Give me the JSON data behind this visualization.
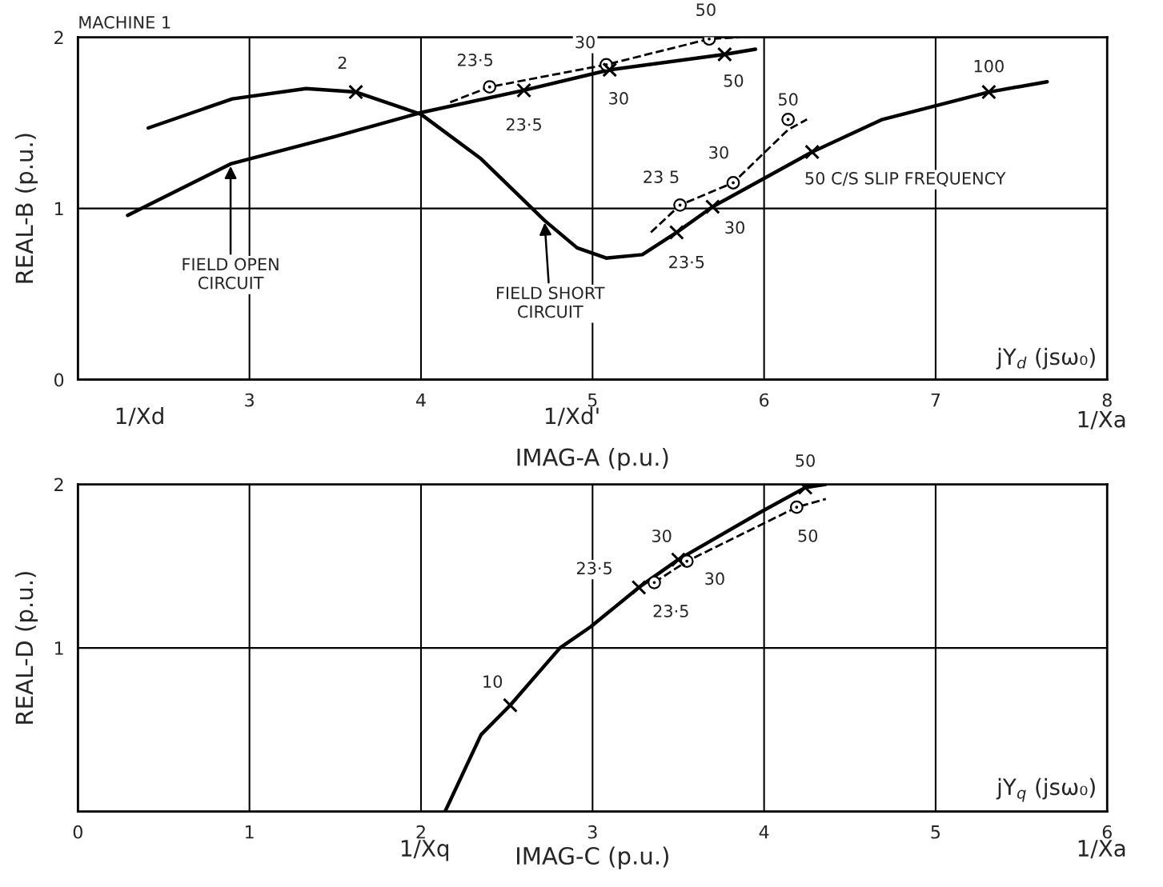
{
  "chart_data": [
    {
      "type": "line",
      "title": "MACHINE 1",
      "xlabel": "IMAG-A (p.u.)",
      "ylabel": "REAL-B (p.u.)",
      "xlim": [
        2,
        8
      ],
      "ylim": [
        0,
        2
      ],
      "xticks": [
        {
          "value": 2,
          "label": null
        },
        3,
        4,
        5,
        6,
        7,
        8
      ],
      "yticks": [
        0,
        1,
        2
      ],
      "grid": true,
      "series": [
        {
          "type": "line",
          "color": "#000000",
          "line_style": "solid",
          "marker": "none",
          "x": [
            2.29,
            2.89,
            3.5,
            4.0,
            4.6,
            5.1,
            5.77,
            5.95
          ],
          "values": [
            0.96,
            1.26,
            1.42,
            1.56,
            1.69,
            1.81,
            1.9,
            1.93
          ]
        },
        {
          "type": "scatter",
          "color": "#000000",
          "marker": "cross",
          "x": [
            4.6,
            5.1,
            5.77
          ],
          "values": [
            1.69,
            1.81,
            1.9
          ]
        },
        {
          "type": "line",
          "color": "#000000",
          "line_style": "dashed",
          "marker": "none",
          "x": [
            4.17,
            4.4,
            5.08,
            5.68,
            5.86
          ],
          "values": [
            1.62,
            1.71,
            1.84,
            1.99,
            2.0
          ]
        },
        {
          "type": "scatter",
          "color": "#000000",
          "marker": "circle",
          "x": [
            4.4,
            5.08,
            5.68
          ],
          "values": [
            1.71,
            1.84,
            1.99
          ]
        },
        {
          "type": "line",
          "color": "#000000",
          "line_style": "solid",
          "marker": "none",
          "x": [
            2.41,
            2.9,
            3.33,
            3.62,
            4.0,
            4.35,
            4.72,
            4.91,
            5.08,
            5.29,
            5.49,
            5.7,
            5.99,
            6.28,
            6.69,
            7.31,
            7.65
          ],
          "values": [
            1.47,
            1.64,
            1.7,
            1.68,
            1.55,
            1.29,
            0.93,
            0.77,
            0.71,
            0.73,
            0.86,
            1.01,
            1.17,
            1.33,
            1.52,
            1.68,
            1.74
          ]
        },
        {
          "type": "scatter",
          "color": "#000000",
          "marker": "cross",
          "x": [
            3.62,
            5.49,
            5.7,
            6.28,
            7.31
          ],
          "values": [
            1.68,
            0.86,
            1.01,
            1.33,
            1.68
          ]
        },
        {
          "type": "line",
          "color": "#000000",
          "line_style": "dashed",
          "marker": "none",
          "x": [
            5.34,
            5.51,
            5.82,
            6.14,
            6.25
          ],
          "values": [
            0.86,
            1.02,
            1.15,
            1.46,
            1.52
          ]
        },
        {
          "type": "scatter",
          "color": "#000000",
          "marker": "circle",
          "x": [
            5.51,
            5.82,
            6.14
          ],
          "values": [
            1.02,
            1.15,
            1.52
          ]
        }
      ],
      "annotations": [
        {
          "text": "FIELD OPEN\nCIRCUIT",
          "x": 2.89,
          "y": 1.26
        },
        {
          "text": "FIELD SHORT\nCIRCUIT",
          "x": 4.72,
          "y": 0.93
        },
        {
          "text": "50 C/S SLIP FREQUENCY",
          "x": 6.28,
          "y": 1.33
        },
        {
          "text": "2",
          "x": 3.62,
          "y": 1.68
        },
        {
          "text": "23·5",
          "x": 4.6,
          "y": 1.69
        },
        {
          "text": "30",
          "x": 5.1,
          "y": 1.81
        },
        {
          "text": "50",
          "x": 5.77,
          "y": 1.9
        },
        {
          "text": "23·5",
          "x": 4.4,
          "y": 1.71
        },
        {
          "text": "30",
          "x": 5.08,
          "y": 1.84
        },
        {
          "text": "50",
          "x": 5.68,
          "y": 1.99
        },
        {
          "text": "23·5",
          "x": 5.49,
          "y": 0.86
        },
        {
          "text": "30",
          "x": 5.7,
          "y": 1.01
        },
        {
          "text": "100",
          "x": 7.31,
          "y": 1.68
        },
        {
          "text": "23 5",
          "x": 5.51,
          "y": 1.02
        },
        {
          "text": "30",
          "x": 5.82,
          "y": 1.15
        },
        {
          "text": "50",
          "x": 6.14,
          "y": 1.46
        },
        "1/Xd",
        "1/Xd'",
        "jY$_{d}$ (jsω₀)",
        "1/Xa"
      ]
    },
    {
      "type": "line",
      "xlabel": "IMAG-C (p.u.)",
      "ylabel": "REAL-D (p.u.)",
      "xlim": [
        0,
        6
      ],
      "ylim": [
        0,
        2
      ],
      "xticks": [
        0,
        1,
        2,
        3,
        4,
        5,
        6
      ],
      "yticks": [
        {
          "value": 0,
          "label": null
        },
        1,
        2
      ],
      "grid": true,
      "series": [
        {
          "type": "line",
          "color": "#000000",
          "line_style": "solid",
          "marker": "none",
          "x": [
            2.14,
            2.35,
            2.52,
            2.81,
            2.99,
            3.27,
            3.5,
            3.98,
            4.24,
            4.36
          ],
          "values": [
            0.0,
            0.47,
            0.65,
            1.0,
            1.13,
            1.37,
            1.54,
            1.83,
            1.98,
            2.0
          ]
        },
        {
          "type": "scatter",
          "color": "#000000",
          "marker": "cross",
          "x": [
            2.52,
            3.27,
            3.5,
            4.24
          ],
          "values": [
            0.65,
            1.37,
            1.54,
            1.98
          ]
        },
        {
          "type": "line",
          "color": "#000000",
          "line_style": "dashed",
          "marker": "none",
          "x": [
            3.36,
            3.55,
            4.19,
            4.36
          ],
          "values": [
            1.4,
            1.53,
            1.86,
            1.91
          ]
        },
        {
          "type": "scatter",
          "color": "#000000",
          "marker": "circle",
          "x": [
            3.36,
            3.55,
            4.19
          ],
          "values": [
            1.4,
            1.53,
            1.86
          ]
        }
      ],
      "annotations": [
        {
          "text": "10",
          "x": 2.52,
          "y": 0.65
        },
        {
          "text": "23·5",
          "x": 3.27,
          "y": 1.37
        },
        {
          "text": "30",
          "x": 3.5,
          "y": 1.54
        },
        {
          "text": "50",
          "x": 4.24,
          "y": 1.98
        },
        {
          "text": "23·5",
          "x": 3.36,
          "y": 1.4
        },
        {
          "text": "30",
          "x": 3.55,
          "y": 1.53
        },
        {
          "text": "50",
          "x": 4.19,
          "y": 1.86
        },
        "1/Xq",
        "jY$_{q}$ (jsω₀)",
        "1/Xa"
      ]
    }
  ]
}
